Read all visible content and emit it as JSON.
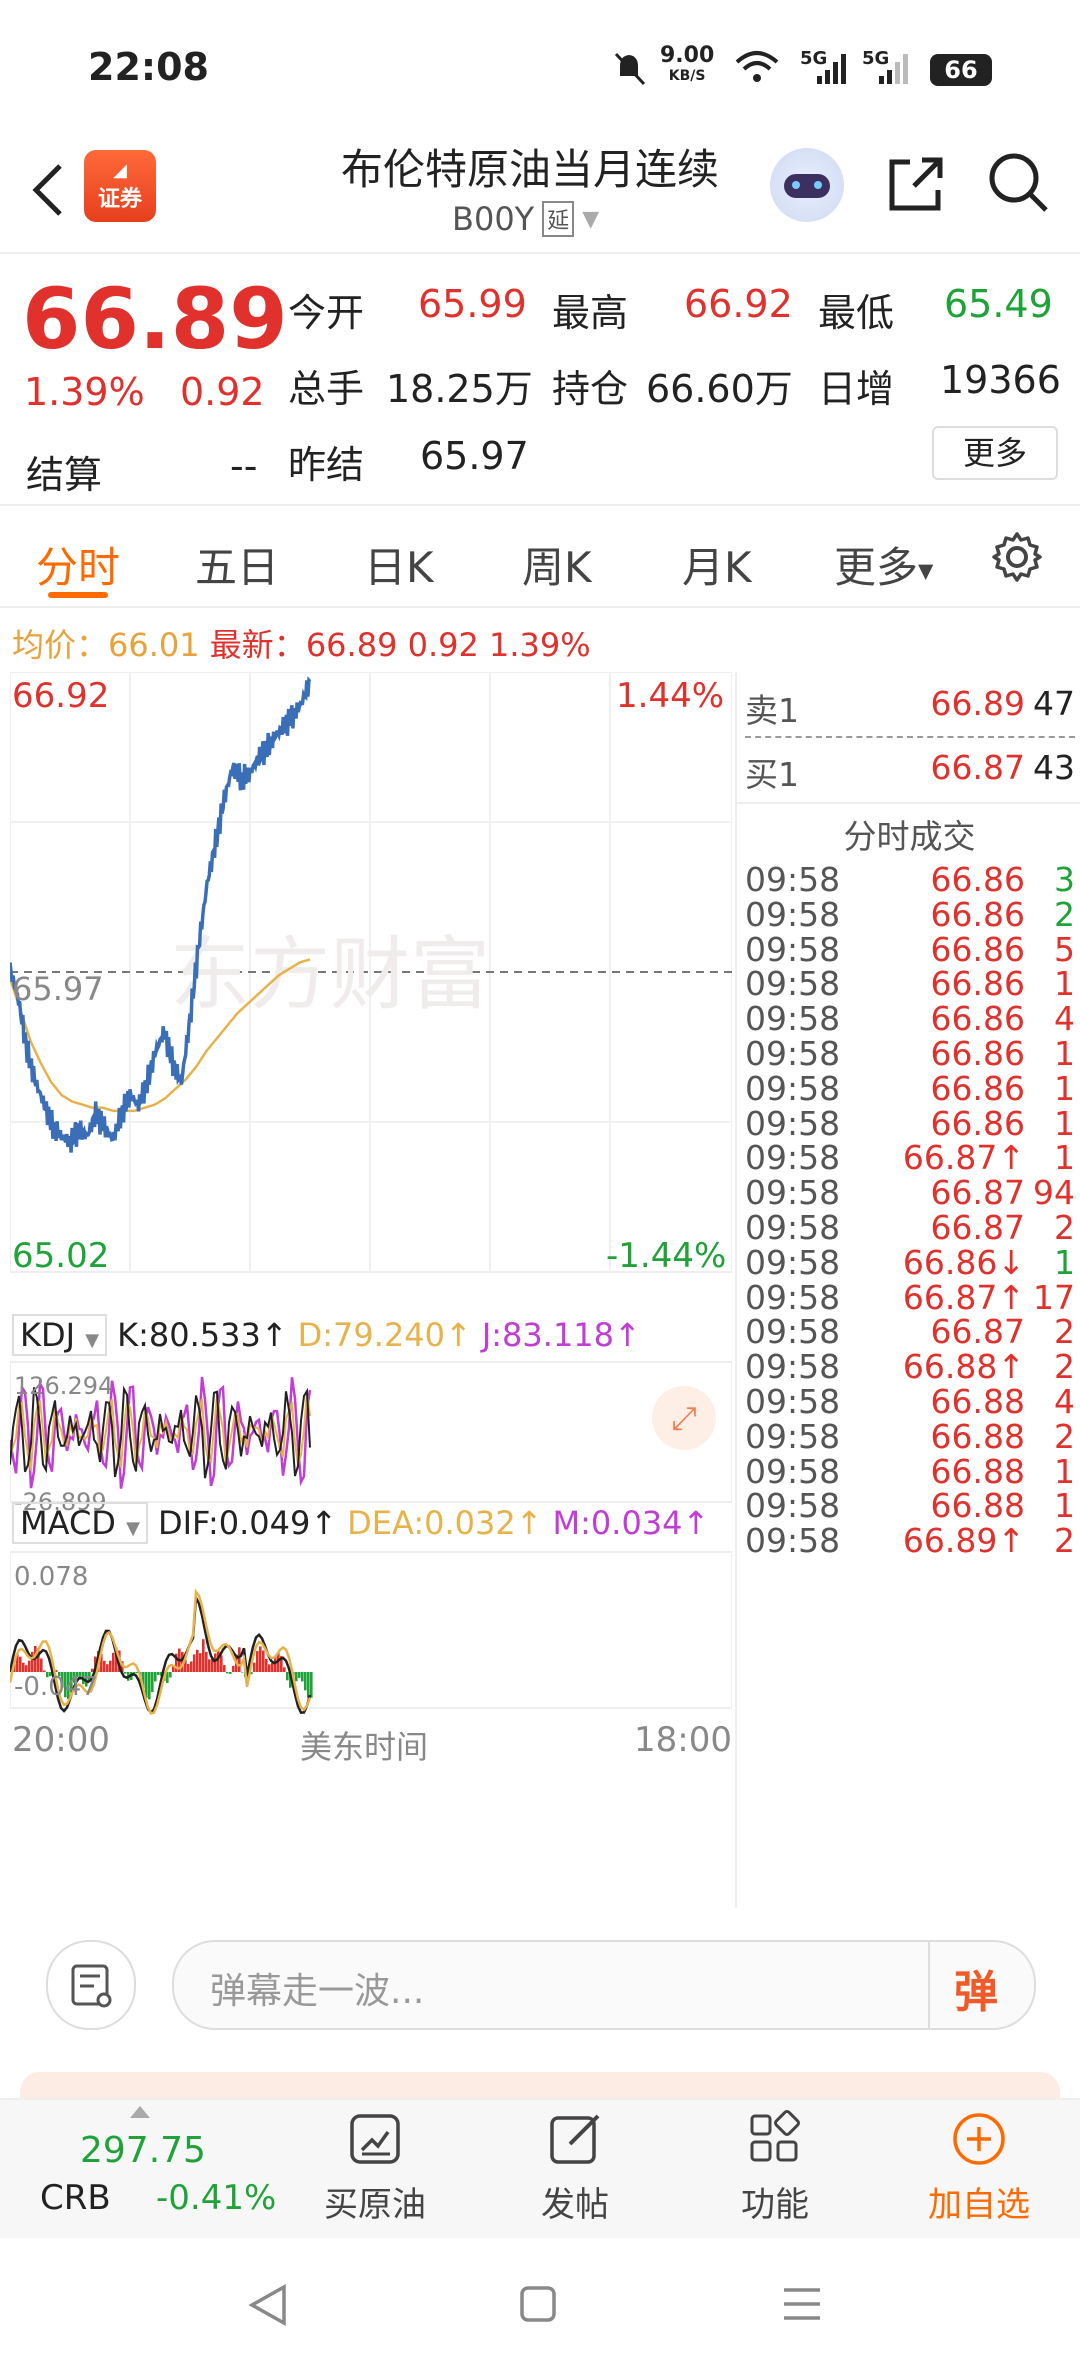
{
  "status_bar": {
    "time": "22:08",
    "net_speed": "9.00",
    "net_unit": "KB/S",
    "signal1": "5G",
    "signal2": "5G",
    "battery": "66"
  },
  "header": {
    "logo_text": "证券",
    "title": "布伦特原油当月连续",
    "code": "B00Y",
    "delay_badge": "延"
  },
  "quote": {
    "price": "66.89",
    "change_pct": "1.39%",
    "change": "0.92",
    "open_label": "今开",
    "open": "65.99",
    "high_label": "最高",
    "high": "66.92",
    "low_label": "最低",
    "low": "65.49",
    "volume_label": "总手",
    "volume": "18.25万",
    "oi_label": "持仓",
    "oi": "66.60万",
    "daily_inc_label": "日增",
    "daily_inc": "19366",
    "settle_label": "结算",
    "settle": "--",
    "prev_settle_label": "昨结",
    "prev_settle": "65.97",
    "more_button": "更多"
  },
  "tabs": [
    "分时",
    "五日",
    "日K",
    "周K",
    "月K",
    "更多"
  ],
  "chart_info": {
    "avg_label": "均价：",
    "avg": "66.01",
    "latest_label": "最新：",
    "latest": "66.89",
    "latest_change": "0.92",
    "latest_pct": "1.39%"
  },
  "chart_axes": {
    "y_max": "66.92",
    "y_min": "65.02",
    "pct_max": "1.44%",
    "pct_min": "-1.44%",
    "ref": "65.97",
    "x_start": "20:00",
    "x_mid": "美东时间",
    "x_end": "18:00",
    "watermark": "东方财富"
  },
  "kdj": {
    "name": "KDJ",
    "k": "K:80.533↑",
    "d": "D:79.240↑",
    "j": "J:83.118↑",
    "max": "126.294",
    "min": "-26.899"
  },
  "macd": {
    "name": "MACD",
    "dif": "DIF:0.049↑",
    "dea": "DEA:0.032↑",
    "m": "M:0.034↑",
    "max": "0.078",
    "min": "-0.047"
  },
  "order_book": {
    "ask_label": "卖1",
    "ask_price": "66.89",
    "ask_vol": "47",
    "bid_label": "买1",
    "bid_price": "66.87",
    "bid_vol": "43",
    "trades_title": "分时成交",
    "trades": [
      {
        "t": "09:58",
        "p": "66.86",
        "v": "3",
        "c": "#1fa339"
      },
      {
        "t": "09:58",
        "p": "66.86",
        "v": "2",
        "c": "#1fa339"
      },
      {
        "t": "09:58",
        "p": "66.86",
        "v": "5",
        "c": "#e0312c"
      },
      {
        "t": "09:58",
        "p": "66.86",
        "v": "1",
        "c": "#e0312c"
      },
      {
        "t": "09:58",
        "p": "66.86",
        "v": "4",
        "c": "#e0312c"
      },
      {
        "t": "09:58",
        "p": "66.86",
        "v": "1",
        "c": "#e0312c"
      },
      {
        "t": "09:58",
        "p": "66.86",
        "v": "1",
        "c": "#e0312c"
      },
      {
        "t": "09:58",
        "p": "66.86",
        "v": "1",
        "c": "#e0312c"
      },
      {
        "t": "09:58",
        "p": "66.87↑",
        "v": "1",
        "c": "#e0312c"
      },
      {
        "t": "09:58",
        "p": "66.87",
        "v": "94",
        "c": "#e0312c"
      },
      {
        "t": "09:58",
        "p": "66.87",
        "v": "2",
        "c": "#e0312c"
      },
      {
        "t": "09:58",
        "p": "66.86↓",
        "v": "1",
        "c": "#1fa339"
      },
      {
        "t": "09:58",
        "p": "66.87↑",
        "v": "17",
        "c": "#e0312c"
      },
      {
        "t": "09:58",
        "p": "66.87",
        "v": "2",
        "c": "#e0312c"
      },
      {
        "t": "09:58",
        "p": "66.88↑",
        "v": "2",
        "c": "#e0312c"
      },
      {
        "t": "09:58",
        "p": "66.88",
        "v": "4",
        "c": "#e0312c"
      },
      {
        "t": "09:58",
        "p": "66.88",
        "v": "2",
        "c": "#e0312c"
      },
      {
        "t": "09:58",
        "p": "66.88",
        "v": "1",
        "c": "#e0312c"
      },
      {
        "t": "09:58",
        "p": "66.88",
        "v": "1",
        "c": "#e0312c"
      },
      {
        "t": "09:58",
        "p": "66.89↑",
        "v": "2",
        "c": "#e0312c"
      }
    ]
  },
  "comment": {
    "placeholder": "弹幕走一波...",
    "danmu_button": "弹"
  },
  "bottom_nav": {
    "crb_value": "297.75",
    "crb_label": "CRB",
    "crb_change": "-0.41%",
    "items": [
      "买原油",
      "发帖",
      "功能",
      "加自选"
    ]
  },
  "chart_data": {
    "type": "line",
    "title": "",
    "ylim": [
      65.02,
      66.92
    ],
    "reference": 65.97,
    "x_labels": [
      "20:00",
      "18:00"
    ],
    "series": [
      {
        "values": [
          65.98,
          65.88,
          65.72,
          65.62,
          65.55,
          65.48,
          65.45,
          65.43,
          65.47,
          65.45,
          65.52,
          65.48,
          65.44,
          65.52,
          65.58,
          65.55,
          65.62,
          65.72,
          65.78,
          65.68,
          65.62,
          65.82,
          66.05,
          66.25,
          66.38,
          66.52,
          66.62,
          66.58,
          66.6,
          66.65,
          66.68,
          66.72,
          66.75,
          66.78,
          66.82,
          66.89
        ]
      },
      {
        "values": [
          65.95,
          65.85,
          65.75,
          65.68,
          65.62,
          65.58,
          65.56,
          65.55,
          65.54,
          65.54,
          65.53,
          65.53,
          65.53,
          65.54,
          65.55,
          65.57,
          65.6,
          65.63,
          65.67,
          65.72,
          65.76,
          65.8,
          65.84,
          65.87,
          65.9,
          65.93,
          65.96,
          65.98,
          66.0,
          66.01
        ]
      }
    ]
  },
  "colors": {
    "accent": "#ff6a00",
    "up": "#e0312c",
    "down": "#1fa339",
    "price_line": "#3a6fb8",
    "avg_line": "#e8b24a"
  }
}
